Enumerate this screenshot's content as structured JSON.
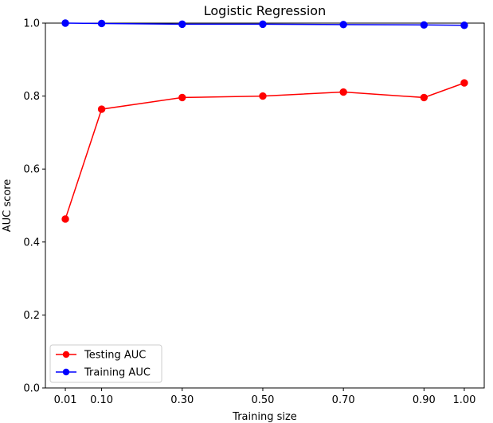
{
  "chart_data": {
    "type": "line",
    "title": "Logistic Regression",
    "xlabel": "Training size",
    "ylabel": "AUC score",
    "x": [
      0.01,
      0.1,
      0.3,
      0.5,
      0.7,
      0.9,
      1.0
    ],
    "x_tick_labels": [
      "0.01",
      "0.10",
      "0.30",
      "0.50",
      "0.70",
      "0.90",
      "1.00"
    ],
    "y_ticks": [
      0.0,
      0.2,
      0.4,
      0.6,
      0.8,
      1.0
    ],
    "y_tick_labels": [
      "0.0",
      "0.2",
      "0.4",
      "0.6",
      "0.8",
      "1.0"
    ],
    "xlim": [
      -0.0395,
      1.0495
    ],
    "ylim": [
      0.0,
      1.0
    ],
    "grid": false,
    "legend_position": "lower-left",
    "series": [
      {
        "name": "Testing AUC",
        "color": "#ff0000",
        "marker": "circle",
        "values": [
          0.463,
          0.764,
          0.796,
          0.8,
          0.811,
          0.796,
          0.836
        ]
      },
      {
        "name": "Training AUC",
        "color": "#0000ff",
        "marker": "circle",
        "values": [
          1.0,
          0.999,
          0.997,
          0.997,
          0.996,
          0.995,
          0.994
        ]
      }
    ]
  }
}
